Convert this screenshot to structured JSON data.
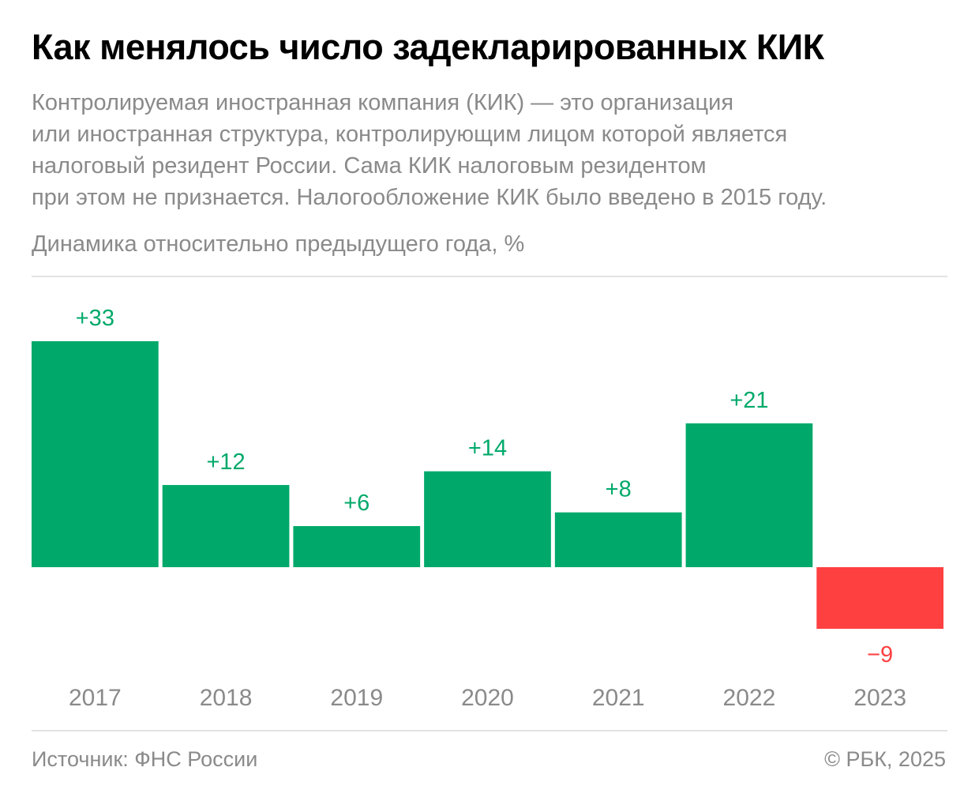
{
  "header": {
    "title": "Как менялось число задекларированных КИК",
    "intro_lines": [
      "Контролируемая иностранная компания (КИК) — это организация",
      "или иностранная структура, контролирующим лицом которой является",
      "налоговый резидент России. Сама КИК налоговым резидентом",
      "при этом не признается. Налогообложение КИК было введено в 2015 году."
    ],
    "subtitle": "Динамика относительно предыдущего года, %"
  },
  "chart_data": {
    "type": "bar",
    "title": "Как менялось число задекларированных КИК",
    "ylabel": "Динамика относительно предыдущего года, %",
    "categories": [
      "2017",
      "2018",
      "2019",
      "2020",
      "2021",
      "2022",
      "2023"
    ],
    "values": [
      33,
      12,
      6,
      14,
      8,
      21,
      -9
    ],
    "value_labels": [
      "+33",
      "+12",
      "+6",
      "+14",
      "+8",
      "+21",
      "−9"
    ],
    "colors": {
      "positive": "#00a96a",
      "negative": "#ff4040",
      "axis_text": "#8a8a8a"
    },
    "grid": false,
    "legend": "none"
  },
  "footer": {
    "source": "Источник: ФНС России",
    "copyright": "© РБК, 2025"
  }
}
